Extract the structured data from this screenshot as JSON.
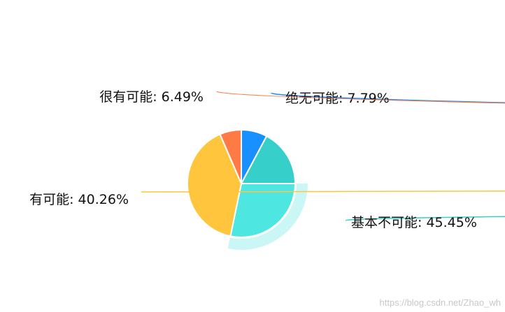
{
  "chart_data": {
    "type": "pie",
    "slices": [
      {
        "label": "绝无可能",
        "value": 7.79,
        "text": "绝无可能: 7.79%",
        "color": "#1890ff"
      },
      {
        "label": "基本不可能",
        "value": 45.45,
        "text": "基本不可能: 45.45%",
        "color": "#36cfc9",
        "highlight_color": "#4ee6e1",
        "emphasized": true
      },
      {
        "label": "有可能",
        "value": 40.26,
        "text": "有可能: 40.26%",
        "color": "#ffc53d"
      },
      {
        "label": "很有可能",
        "value": 6.49,
        "text": "很有可能: 6.49%",
        "color": "#ff7a45"
      }
    ]
  },
  "watermark": "https://blog.csdn.net/Zhao_wh"
}
